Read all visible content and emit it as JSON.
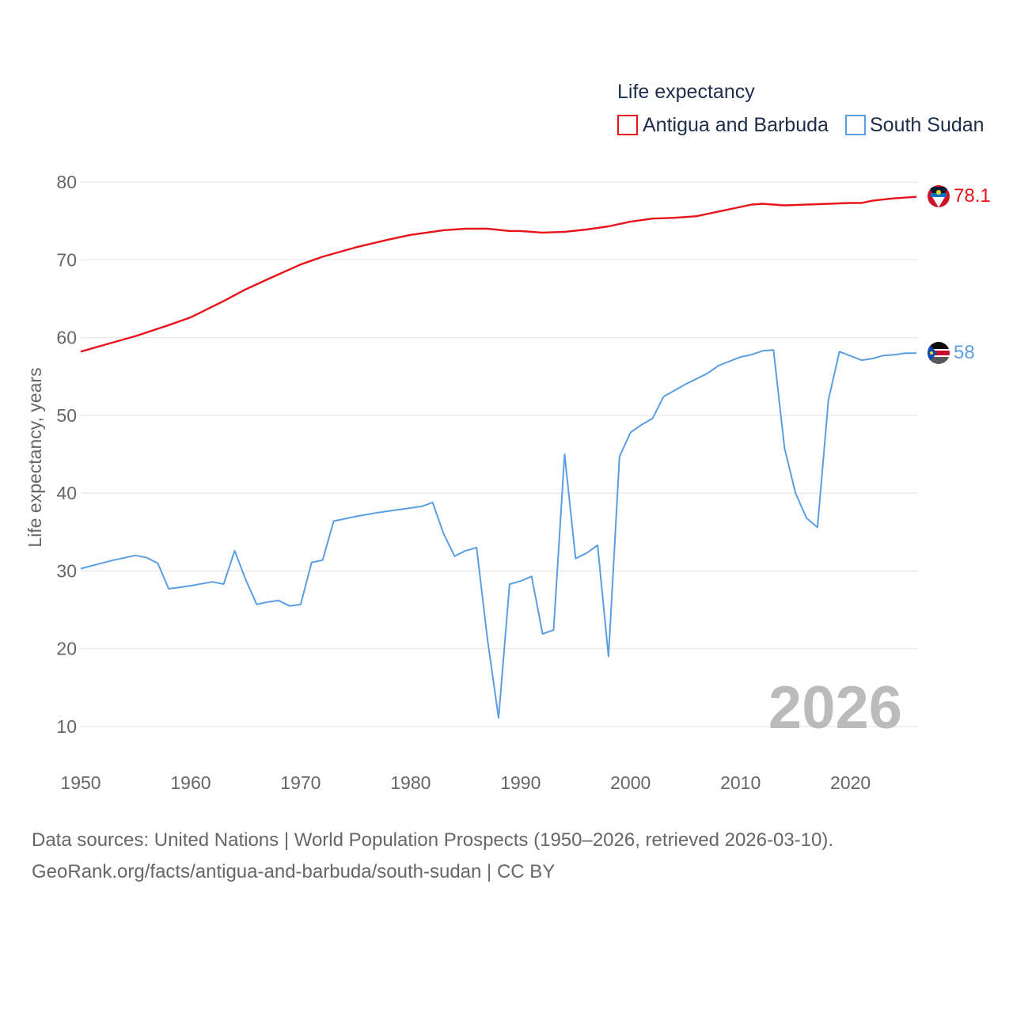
{
  "legend": {
    "title": "Life expectancy",
    "entries": [
      "Antigua and Barbuda",
      "South Sudan"
    ]
  },
  "chart_data": {
    "type": "line",
    "title": "Life expectancy",
    "xlabel": "",
    "ylabel": "Life expectancy, years",
    "xlim": [
      1950,
      2026
    ],
    "ylim": [
      7,
      83
    ],
    "grid": true,
    "legend_position": "top-right",
    "x_ticks": [
      1950,
      1960,
      1970,
      1980,
      1990,
      2000,
      2010,
      2020
    ],
    "y_ticks": [
      10,
      20,
      30,
      40,
      50,
      60,
      70,
      80
    ],
    "year_stamp": "2026",
    "series": [
      {
        "name": "Antigua and Barbuda",
        "color": "#e8131a",
        "end_label": "78.1",
        "points": [
          [
            1950,
            58.2
          ],
          [
            1952,
            59.0
          ],
          [
            1955,
            60.2
          ],
          [
            1958,
            61.6
          ],
          [
            1960,
            62.6
          ],
          [
            1963,
            64.7
          ],
          [
            1965,
            66.2
          ],
          [
            1967,
            67.5
          ],
          [
            1970,
            69.4
          ],
          [
            1972,
            70.4
          ],
          [
            1975,
            71.6
          ],
          [
            1978,
            72.6
          ],
          [
            1980,
            73.2
          ],
          [
            1983,
            73.8
          ],
          [
            1985,
            74.0
          ],
          [
            1987,
            74.0
          ],
          [
            1989,
            73.7
          ],
          [
            1990,
            73.7
          ],
          [
            1992,
            73.5
          ],
          [
            1994,
            73.6
          ],
          [
            1996,
            73.9
          ],
          [
            1998,
            74.3
          ],
          [
            2000,
            74.9
          ],
          [
            2002,
            75.3
          ],
          [
            2004,
            75.4
          ],
          [
            2006,
            75.6
          ],
          [
            2008,
            76.2
          ],
          [
            2010,
            76.8
          ],
          [
            2011,
            77.1
          ],
          [
            2012,
            77.2
          ],
          [
            2014,
            77.0
          ],
          [
            2016,
            77.1
          ],
          [
            2018,
            77.2
          ],
          [
            2020,
            77.3
          ],
          [
            2021,
            77.3
          ],
          [
            2022,
            77.6
          ],
          [
            2024,
            77.9
          ],
          [
            2026,
            78.1
          ]
        ]
      },
      {
        "name": "South Sudan",
        "color": "#5b9ee1",
        "end_label": "58",
        "points": [
          [
            1950,
            30.3
          ],
          [
            1953,
            31.4
          ],
          [
            1955,
            32.0
          ],
          [
            1956,
            31.7
          ],
          [
            1957,
            31.0
          ],
          [
            1958,
            27.7
          ],
          [
            1959,
            27.9
          ],
          [
            1960,
            28.1
          ],
          [
            1962,
            28.6
          ],
          [
            1963,
            28.3
          ],
          [
            1964,
            32.6
          ],
          [
            1965,
            28.9
          ],
          [
            1966,
            25.7
          ],
          [
            1967,
            26.0
          ],
          [
            1968,
            26.2
          ],
          [
            1969,
            25.5
          ],
          [
            1970,
            25.7
          ],
          [
            1971,
            31.1
          ],
          [
            1972,
            31.4
          ],
          [
            1973,
            36.4
          ],
          [
            1975,
            37.0
          ],
          [
            1977,
            37.5
          ],
          [
            1979,
            37.9
          ],
          [
            1981,
            38.3
          ],
          [
            1982,
            38.8
          ],
          [
            1983,
            34.8
          ],
          [
            1984,
            31.9
          ],
          [
            1985,
            32.6
          ],
          [
            1986,
            33.0
          ],
          [
            1987,
            21.1
          ],
          [
            1988,
            11.1
          ],
          [
            1989,
            28.3
          ],
          [
            1990,
            28.7
          ],
          [
            1991,
            29.3
          ],
          [
            1992,
            21.9
          ],
          [
            1993,
            22.4
          ],
          [
            1994,
            45.0
          ],
          [
            1995,
            31.6
          ],
          [
            1996,
            32.3
          ],
          [
            1997,
            33.3
          ],
          [
            1998,
            19.0
          ],
          [
            1999,
            44.7
          ],
          [
            2000,
            47.8
          ],
          [
            2001,
            48.8
          ],
          [
            2002,
            49.6
          ],
          [
            2003,
            52.4
          ],
          [
            2005,
            54.0
          ],
          [
            2007,
            55.4
          ],
          [
            2008,
            56.4
          ],
          [
            2010,
            57.5
          ],
          [
            2011,
            57.8
          ],
          [
            2012,
            58.3
          ],
          [
            2013,
            58.4
          ],
          [
            2014,
            45.8
          ],
          [
            2015,
            40.0
          ],
          [
            2016,
            36.8
          ],
          [
            2017,
            35.6
          ],
          [
            2018,
            52.0
          ],
          [
            2019,
            58.2
          ],
          [
            2021,
            57.1
          ],
          [
            2022,
            57.3
          ],
          [
            2023,
            57.7
          ],
          [
            2024,
            57.8
          ],
          [
            2025,
            58.0
          ],
          [
            2026,
            58.0
          ]
        ]
      }
    ]
  },
  "source": {
    "line1": "Data sources: United Nations | World Population Prospects (1950–2026, retrieved 2026-03-10).",
    "line2": "GeoRank.org/facts/antigua-and-barbuda/south-sudan | CC BY"
  }
}
